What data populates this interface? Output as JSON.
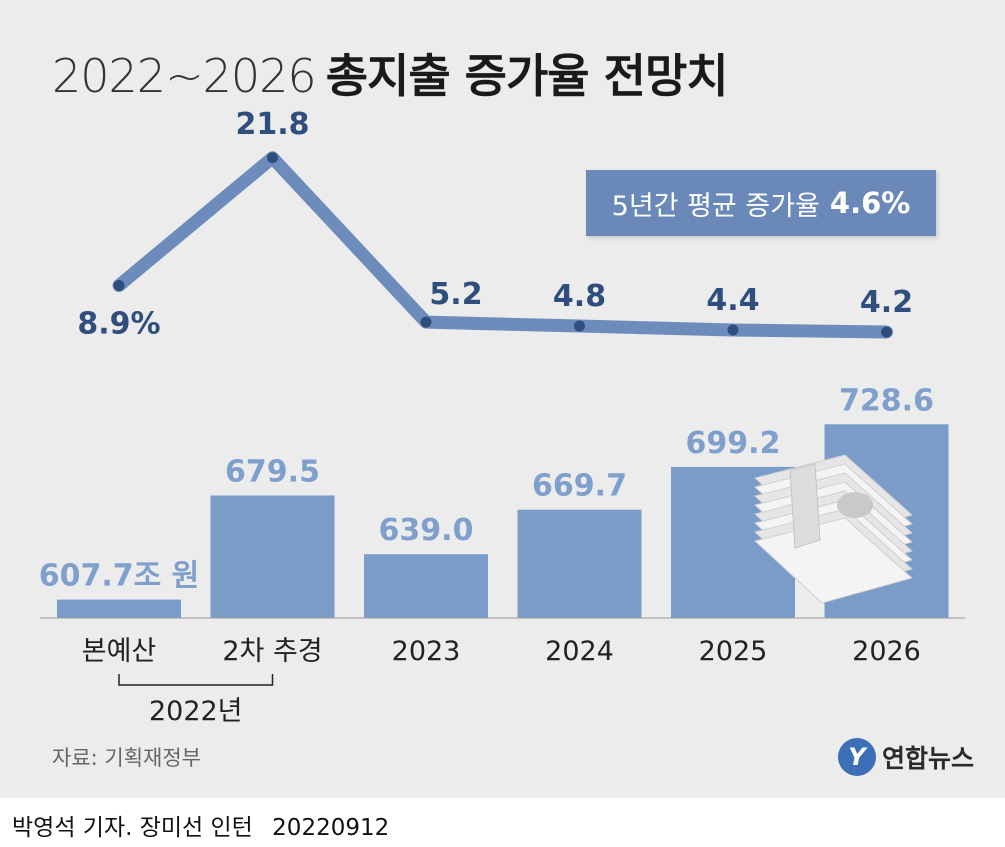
{
  "header": {
    "title_years": "2022~2026",
    "title_main": "총지출 증가율 전망치"
  },
  "badge": {
    "label": "5년간 평균 증가율",
    "value": "4.6%"
  },
  "chart_data": {
    "type": "bar",
    "categories": [
      "본예산",
      "2차 추경",
      "2023",
      "2024",
      "2025",
      "2026"
    ],
    "group_label": "2022년",
    "bar_values": [
      607.7,
      679.5,
      639.0,
      669.7,
      699.2,
      728.6
    ],
    "bar_labels": [
      "607.7조 원",
      "679.5",
      "639.0",
      "669.7",
      "699.2",
      "728.6"
    ],
    "line_values": [
      8.9,
      21.8,
      5.2,
      4.8,
      4.4,
      4.2
    ],
    "line_labels": [
      "8.9%",
      "21.8",
      "5.2",
      "4.8",
      "4.4",
      "4.2"
    ],
    "colors": {
      "bar": "#7b9bc8",
      "bar_label": "#7f9fcc",
      "line": "#6d8cbb",
      "line_label": "#2f4e7e",
      "dot": "#2f4e7e"
    }
  },
  "footer": {
    "source": "자료: 기획재정부",
    "logo_text": "연합뉴스",
    "logo_mark": "Y",
    "credit": "박영석 기자. 장미선 인턴",
    "date": "20220912"
  }
}
